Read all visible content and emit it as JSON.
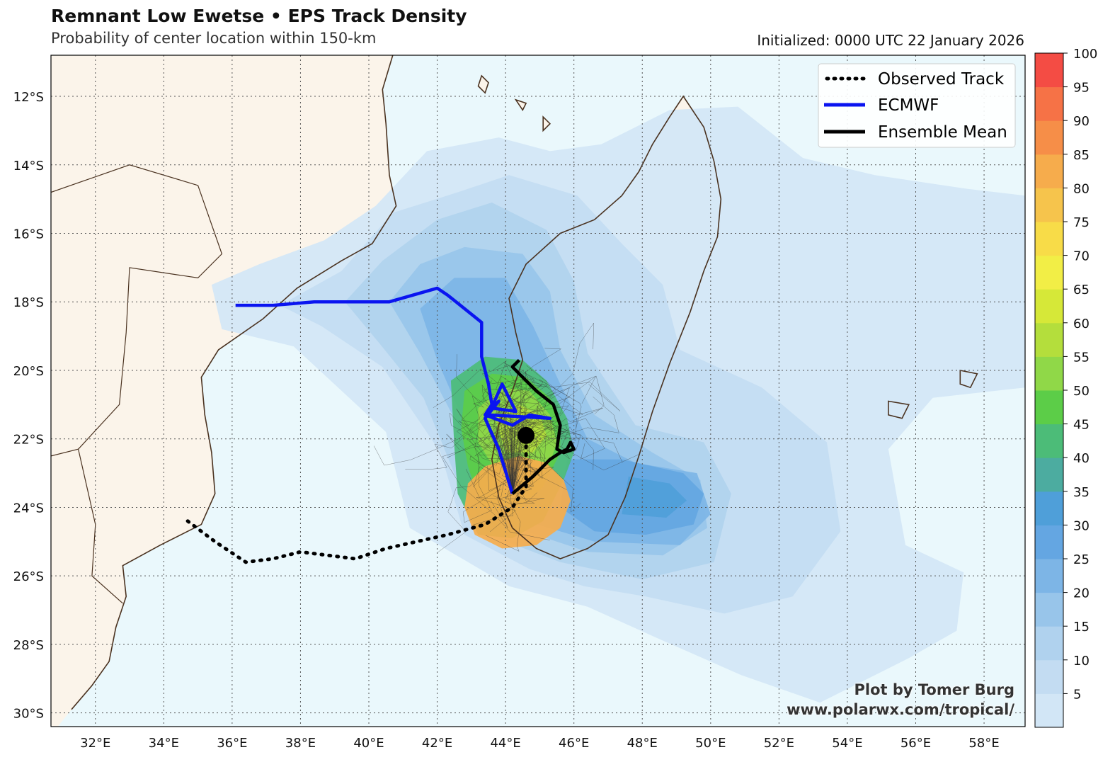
{
  "header": {
    "title": "Remnant Low Ewetse • EPS Track Density",
    "subtitle": "Probability of center location within 150-km",
    "initialized": "Initialized: 0000 UTC 22 January 2026"
  },
  "credit": {
    "line1": "Plot by Tomer Burg",
    "line2": "www.polarwx.com/tropical/"
  },
  "map": {
    "extent": {
      "lon_min": 30.7,
      "lon_max": 59.2,
      "lat_min": -30.4,
      "lat_max": -10.8
    },
    "lat_ticks": [
      {
        "value": -12,
        "label": "12°S"
      },
      {
        "value": -14,
        "label": "14°S"
      },
      {
        "value": -16,
        "label": "16°S"
      },
      {
        "value": -18,
        "label": "18°S"
      },
      {
        "value": -20,
        "label": "20°S"
      },
      {
        "value": -22,
        "label": "22°S"
      },
      {
        "value": -24,
        "label": "24°S"
      },
      {
        "value": -26,
        "label": "26°S"
      },
      {
        "value": -28,
        "label": "28°S"
      },
      {
        "value": -30,
        "label": "30°S"
      }
    ],
    "lon_ticks": [
      {
        "value": 32,
        "label": "32°E"
      },
      {
        "value": 34,
        "label": "34°E"
      },
      {
        "value": 36,
        "label": "36°E"
      },
      {
        "value": 38,
        "label": "38°E"
      },
      {
        "value": 40,
        "label": "40°E"
      },
      {
        "value": 42,
        "label": "42°E"
      },
      {
        "value": 44,
        "label": "44°E"
      },
      {
        "value": 46,
        "label": "46°E"
      },
      {
        "value": 48,
        "label": "48°E"
      },
      {
        "value": 50,
        "label": "50°E"
      },
      {
        "value": 52,
        "label": "52°E"
      },
      {
        "value": 54,
        "label": "54°E"
      },
      {
        "value": 56,
        "label": "56°E"
      },
      {
        "value": 58,
        "label": "58°E"
      }
    ],
    "grid": true,
    "colors": {
      "ocean": "#eaf8fc",
      "land": "#fbf4ea",
      "coast": "#4a3220"
    }
  },
  "legend": {
    "placement": "top-right",
    "items": [
      {
        "label": "Observed Track",
        "color": "#000000",
        "style": "dotted"
      },
      {
        "label": "ECMWF",
        "color": "#0a14f0",
        "style": "solid"
      },
      {
        "label": "Ensemble Mean",
        "color": "#000000",
        "style": "solid"
      }
    ]
  },
  "colorbar": {
    "labels": [
      "5",
      "10",
      "15",
      "20",
      "25",
      "30",
      "35",
      "40",
      "45",
      "50",
      "55",
      "60",
      "65",
      "70",
      "75",
      "80",
      "85",
      "90",
      "95",
      "100"
    ],
    "colors": [
      "#d2e6f6",
      "#c3dcf2",
      "#b0d2ee",
      "#98c5ea",
      "#7db5e6",
      "#64a6e2",
      "#4f9fd9",
      "#4caca0",
      "#4cbc78",
      "#5ccd48",
      "#90d848",
      "#b4de3c",
      "#d6e838",
      "#f2ee46",
      "#f8dc48",
      "#f6c44c",
      "#f6ac4c",
      "#f68e48",
      "#f67246",
      "#f44c44"
    ]
  },
  "chart_data": {
    "type": "track_density_map",
    "current_position": {
      "lon": 44.6,
      "lat": -21.9
    },
    "observed_track": [
      [
        34.7,
        -24.4
      ],
      [
        35.5,
        -25.0
      ],
      [
        36.4,
        -25.6
      ],
      [
        37.2,
        -25.5
      ],
      [
        38.0,
        -25.3
      ],
      [
        38.8,
        -25.4
      ],
      [
        39.6,
        -25.5
      ],
      [
        40.5,
        -25.2
      ],
      [
        41.4,
        -25.0
      ],
      [
        42.3,
        -24.8
      ],
      [
        43.4,
        -24.5
      ],
      [
        44.2,
        -24.0
      ],
      [
        44.6,
        -23.4
      ],
      [
        44.6,
        -22.4
      ],
      [
        44.6,
        -21.9
      ]
    ],
    "ecmwf_track": [
      [
        36.1,
        -18.1
      ],
      [
        37.2,
        -18.1
      ],
      [
        38.4,
        -18.0
      ],
      [
        39.6,
        -18.0
      ],
      [
        40.6,
        -18.0
      ],
      [
        41.3,
        -17.8
      ],
      [
        42.0,
        -17.6
      ],
      [
        42.3,
        -17.8
      ],
      [
        42.8,
        -18.2
      ],
      [
        43.3,
        -18.6
      ],
      [
        43.3,
        -19.6
      ],
      [
        43.5,
        -20.4
      ],
      [
        43.6,
        -21.0
      ],
      [
        43.4,
        -21.3
      ],
      [
        44.2,
        -21.6
      ],
      [
        44.7,
        -21.3
      ],
      [
        45.3,
        -21.4
      ],
      [
        43.5,
        -21.3
      ],
      [
        43.9,
        -20.4
      ],
      [
        44.3,
        -21.2
      ],
      [
        43.6,
        -21.1
      ],
      [
        43.8,
        -20.9
      ],
      [
        43.4,
        -21.4
      ],
      [
        43.8,
        -22.3
      ],
      [
        44.2,
        -23.6
      ]
    ],
    "ensemble_mean_track": [
      [
        44.2,
        -23.6
      ],
      [
        44.8,
        -23.1
      ],
      [
        45.3,
        -22.6
      ],
      [
        45.6,
        -22.4
      ],
      [
        45.8,
        -22.3
      ],
      [
        45.9,
        -22.1
      ],
      [
        46.0,
        -22.3
      ],
      [
        45.7,
        -22.4
      ],
      [
        45.5,
        -22.3
      ],
      [
        45.6,
        -21.6
      ],
      [
        45.4,
        -21.0
      ],
      [
        44.9,
        -20.6
      ],
      [
        44.4,
        -20.1
      ],
      [
        44.2,
        -19.9
      ],
      [
        44.4,
        -19.7
      ]
    ],
    "density_regions": [
      {
        "level": 5,
        "polygon": [
          [
            35.4,
            -17.5
          ],
          [
            36.8,
            -16.9
          ],
          [
            38.7,
            -16.2
          ],
          [
            40.2,
            -15.2
          ],
          [
            41.7,
            -13.6
          ],
          [
            43.8,
            -13.2
          ],
          [
            45.3,
            -13.6
          ],
          [
            46.8,
            -13.4
          ],
          [
            48.8,
            -12.4
          ],
          [
            50.8,
            -12.3
          ],
          [
            52.7,
            -13.8
          ],
          [
            54.8,
            -14.3
          ],
          [
            57.5,
            -14.7
          ],
          [
            59.2,
            -14.9
          ],
          [
            59.2,
            -20.5
          ],
          [
            56.5,
            -20.8
          ],
          [
            55.2,
            -22.3
          ],
          [
            55.7,
            -25.1
          ],
          [
            57.4,
            -25.9
          ],
          [
            57.2,
            -27.6
          ],
          [
            55.8,
            -28.4
          ],
          [
            53.2,
            -29.7
          ],
          [
            50.9,
            -28.9
          ],
          [
            48.4,
            -27.8
          ],
          [
            46.4,
            -26.9
          ],
          [
            44.1,
            -26.3
          ],
          [
            41.2,
            -24.6
          ],
          [
            40.5,
            -21.8
          ],
          [
            37.8,
            -19.3
          ],
          [
            35.7,
            -18.8
          ]
        ]
      },
      {
        "level": 10,
        "polygon": [
          [
            37.4,
            -18.1
          ],
          [
            39.2,
            -17.1
          ],
          [
            40.7,
            -15.4
          ],
          [
            42.6,
            -14.8
          ],
          [
            44.1,
            -14.3
          ],
          [
            46.1,
            -14.9
          ],
          [
            47.4,
            -16.3
          ],
          [
            48.6,
            -17.5
          ],
          [
            49.1,
            -19.4
          ],
          [
            51.5,
            -20.5
          ],
          [
            53.4,
            -22.1
          ],
          [
            53.8,
            -24.7
          ],
          [
            52.4,
            -26.6
          ],
          [
            50.4,
            -27.1
          ],
          [
            48.1,
            -26.6
          ],
          [
            46.3,
            -26.3
          ],
          [
            44.7,
            -25.8
          ],
          [
            42.8,
            -24.8
          ],
          [
            42.1,
            -22.4
          ],
          [
            40.4,
            -19.9
          ],
          [
            38.6,
            -18.7
          ]
        ]
      },
      {
        "level": 15,
        "polygon": [
          [
            39.3,
            -18.0
          ],
          [
            40.4,
            -16.8
          ],
          [
            42.0,
            -15.6
          ],
          [
            43.6,
            -15.1
          ],
          [
            45.2,
            -15.9
          ],
          [
            46.0,
            -17.4
          ],
          [
            46.4,
            -19.5
          ],
          [
            47.8,
            -21.6
          ],
          [
            49.8,
            -22.1
          ],
          [
            50.6,
            -23.6
          ],
          [
            50.1,
            -25.6
          ],
          [
            48.0,
            -26.1
          ],
          [
            45.6,
            -25.6
          ],
          [
            43.5,
            -24.8
          ],
          [
            42.5,
            -23.0
          ],
          [
            41.6,
            -20.8
          ],
          [
            40.3,
            -19.2
          ]
        ]
      },
      {
        "level": 20,
        "polygon": [
          [
            40.6,
            -18.0
          ],
          [
            41.5,
            -16.9
          ],
          [
            42.8,
            -16.4
          ],
          [
            44.5,
            -16.6
          ],
          [
            45.3,
            -17.7
          ],
          [
            45.6,
            -19.4
          ],
          [
            46.6,
            -21.3
          ],
          [
            48.3,
            -22.4
          ],
          [
            49.7,
            -23.2
          ],
          [
            49.9,
            -24.6
          ],
          [
            48.6,
            -25.4
          ],
          [
            46.4,
            -25.3
          ],
          [
            44.3,
            -24.6
          ],
          [
            43.3,
            -23.2
          ],
          [
            42.5,
            -21.4
          ],
          [
            41.5,
            -19.5
          ]
        ]
      },
      {
        "level": 25,
        "polygon": [
          [
            41.5,
            -18.2
          ],
          [
            42.5,
            -17.3
          ],
          [
            44.0,
            -17.3
          ],
          [
            44.8,
            -18.7
          ],
          [
            45.6,
            -20.4
          ],
          [
            46.4,
            -22.0
          ],
          [
            47.8,
            -22.7
          ],
          [
            49.6,
            -23.0
          ],
          [
            50.0,
            -24.2
          ],
          [
            49.1,
            -25.1
          ],
          [
            46.6,
            -25.0
          ],
          [
            44.6,
            -24.4
          ],
          [
            43.4,
            -23.1
          ],
          [
            42.7,
            -21.3
          ],
          [
            42.0,
            -19.7
          ]
        ]
      },
      {
        "level": 30,
        "polygon": [
          [
            45.8,
            -22.6
          ],
          [
            47.4,
            -22.6
          ],
          [
            49.2,
            -23.0
          ],
          [
            49.8,
            -23.6
          ],
          [
            49.5,
            -24.5
          ],
          [
            48.1,
            -24.8
          ],
          [
            46.6,
            -24.7
          ],
          [
            45.6,
            -24.0
          ]
        ]
      },
      {
        "level": 35,
        "polygon": [
          [
            47.6,
            -23.1
          ],
          [
            48.8,
            -23.3
          ],
          [
            49.3,
            -23.8
          ],
          [
            48.7,
            -24.3
          ],
          [
            47.4,
            -24.2
          ]
        ]
      },
      {
        "level": 45,
        "polygon": [
          [
            42.4,
            -20.3
          ],
          [
            43.4,
            -19.6
          ],
          [
            44.5,
            -19.7
          ],
          [
            45.2,
            -20.3
          ],
          [
            45.8,
            -21.4
          ],
          [
            46.0,
            -22.4
          ],
          [
            45.7,
            -23.2
          ],
          [
            45.1,
            -24.4
          ],
          [
            44.2,
            -24.9
          ],
          [
            43.2,
            -24.8
          ],
          [
            42.6,
            -23.6
          ],
          [
            42.5,
            -22.2
          ]
        ]
      },
      {
        "level": 50,
        "polygon": [
          [
            42.8,
            -20.6
          ],
          [
            43.6,
            -20.1
          ],
          [
            44.6,
            -20.2
          ],
          [
            45.3,
            -20.8
          ],
          [
            45.6,
            -21.6
          ],
          [
            45.6,
            -22.4
          ],
          [
            45.1,
            -23.4
          ],
          [
            44.2,
            -24.2
          ],
          [
            43.3,
            -24.0
          ],
          [
            42.9,
            -22.8
          ],
          [
            42.7,
            -21.7
          ]
        ]
      },
      {
        "level": 55,
        "polygon": [
          [
            43.2,
            -21.1
          ],
          [
            43.9,
            -20.5
          ],
          [
            44.7,
            -20.6
          ],
          [
            45.3,
            -21.3
          ],
          [
            45.5,
            -22.1
          ],
          [
            45.3,
            -22.7
          ],
          [
            44.8,
            -23.0
          ],
          [
            43.7,
            -22.9
          ],
          [
            43.2,
            -22.1
          ]
        ]
      },
      {
        "level": 60,
        "polygon": [
          [
            43.7,
            -21.4
          ],
          [
            44.4,
            -21.0
          ],
          [
            45.0,
            -21.3
          ],
          [
            45.2,
            -21.9
          ],
          [
            44.8,
            -22.4
          ],
          [
            44.0,
            -22.4
          ]
        ]
      },
      {
        "level": 85,
        "polygon": [
          [
            43.4,
            -22.8
          ],
          [
            44.4,
            -22.5
          ],
          [
            45.2,
            -22.7
          ],
          [
            45.7,
            -23.2
          ],
          [
            45.9,
            -23.8
          ],
          [
            45.6,
            -24.6
          ],
          [
            44.9,
            -25.1
          ],
          [
            43.9,
            -25.2
          ],
          [
            43.1,
            -24.8
          ],
          [
            42.8,
            -24.0
          ],
          [
            42.9,
            -23.3
          ]
        ]
      }
    ]
  }
}
